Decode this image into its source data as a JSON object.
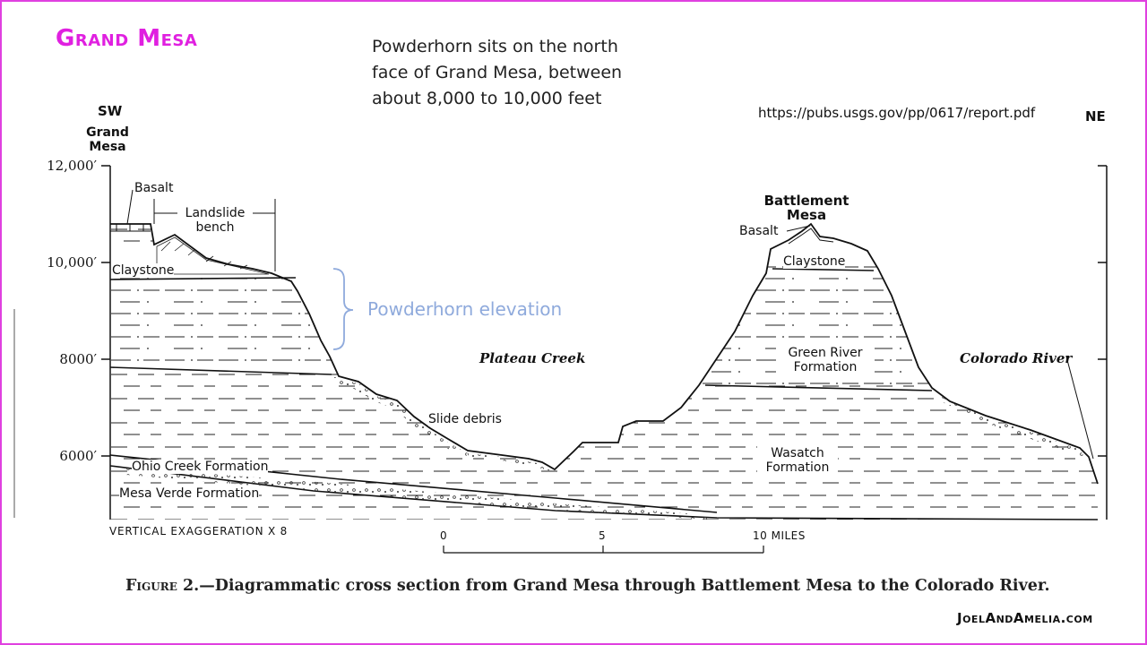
{
  "title": "Grand Mesa",
  "note": "Powderhorn sits on the north face of Grand Mesa, between about 8,000 to 10,000 feet",
  "source_url": "https://pubs.usgs.gov/pp/0617/report.pdf",
  "direction": {
    "left": "SW",
    "right": "NE"
  },
  "peaks": {
    "grand_mesa": "Grand Mesa",
    "battlement_mesa": "Battlement Mesa"
  },
  "y_axis": {
    "labels": [
      "12,000′",
      "10,000′",
      "8000′",
      "6000′"
    ]
  },
  "labels": {
    "basalt_left": "Basalt",
    "landslide_bench": "Landslide bench",
    "claystone_left": "Claystone",
    "powderhorn_elevation": "Powderhorn elevation",
    "plateau_creek": "Plateau Creek",
    "slide_debris": "Slide debris",
    "ohio_creek": "Ohio Creek Formation",
    "mesa_verde": "Mesa Verde Formation",
    "basalt_right": "Basalt",
    "claystone_right": "Claystone",
    "green_river": "Green River Formation",
    "wasatch": "Wasatch Formation",
    "colorado_river": "Colorado River"
  },
  "vertical_exaggeration": "VERTICAL EXAGGERATION X 8",
  "scale": {
    "ticks": [
      "0",
      "5",
      "10 MILES"
    ]
  },
  "caption": {
    "figure": "Figure 2.",
    "text": "—Diagrammatic cross section from Grand Mesa through Battlement Mesa to the Colorado River."
  },
  "brand": "JoelAndAmelia.com"
}
